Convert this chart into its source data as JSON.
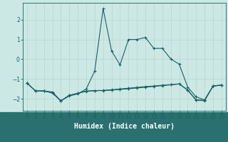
{
  "xlabel": "Humidex (Indice chaleur)",
  "background_color": "#cce8e5",
  "plot_bg_color": "#cce8e5",
  "bottom_bar_color": "#2a7070",
  "grid_color": "#b8d5d0",
  "line_color": "#1a6060",
  "xlim": [
    -0.5,
    23.5
  ],
  "ylim": [
    -2.6,
    2.85
  ],
  "x": [
    0,
    1,
    2,
    3,
    4,
    5,
    6,
    7,
    8,
    9,
    10,
    11,
    12,
    13,
    14,
    15,
    16,
    17,
    18,
    19,
    20,
    21,
    22,
    23
  ],
  "line1": [
    -1.2,
    -1.6,
    -1.6,
    -1.65,
    -2.1,
    -1.85,
    -1.75,
    -1.5,
    -0.6,
    2.55,
    0.42,
    -0.28,
    1.0,
    1.0,
    1.1,
    0.55,
    0.55,
    0.02,
    -0.25,
    -1.4,
    -1.9,
    -2.05,
    -1.35,
    -1.3
  ],
  "line2": [
    -1.2,
    -1.6,
    -1.6,
    -1.7,
    -2.1,
    -1.82,
    -1.72,
    -1.6,
    -1.58,
    -1.57,
    -1.54,
    -1.5,
    -1.46,
    -1.42,
    -1.38,
    -1.35,
    -1.31,
    -1.28,
    -1.24,
    -1.55,
    -2.05,
    -2.07,
    -1.35,
    -1.3
  ],
  "line3": [
    -1.2,
    -1.6,
    -1.6,
    -1.7,
    -2.1,
    -1.82,
    -1.72,
    -1.62,
    -1.59,
    -1.58,
    -1.56,
    -1.52,
    -1.49,
    -1.45,
    -1.41,
    -1.37,
    -1.33,
    -1.29,
    -1.25,
    -1.56,
    -2.07,
    -2.09,
    -1.36,
    -1.31
  ],
  "xlabel_fontsize": 7,
  "tick_fontsize": 5.5
}
